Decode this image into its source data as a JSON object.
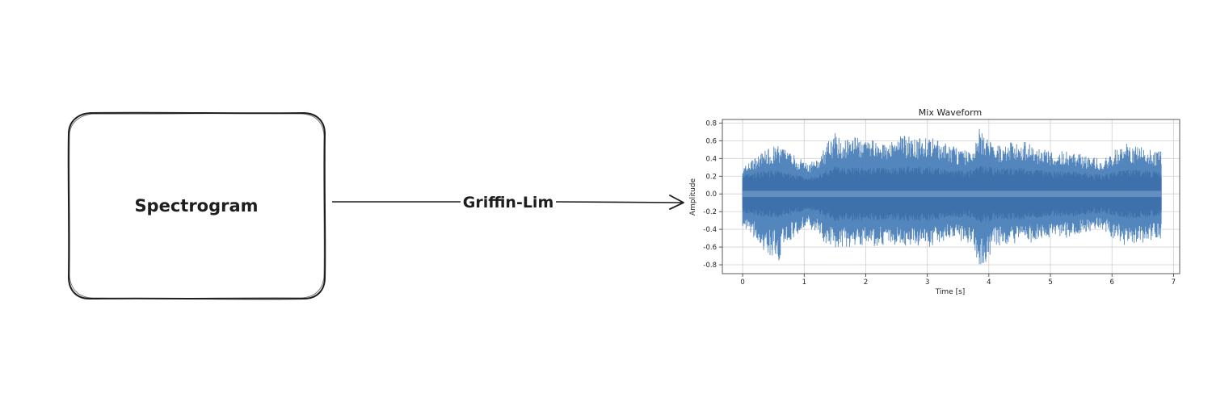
{
  "diagram": {
    "box_label": "Spectrogram",
    "arrow_label": "Griffin-Lim"
  },
  "chart_data": {
    "type": "line",
    "title": "Mix Waveform",
    "xlabel": "Time [s]",
    "ylabel": "Amplitude",
    "xlim": [
      -0.33,
      7.1
    ],
    "ylim": [
      -0.9,
      0.84
    ],
    "xticks": [
      0,
      1,
      2,
      3,
      4,
      5,
      6,
      7
    ],
    "yticks": [
      0.8,
      0.6,
      0.4,
      0.2,
      0.0,
      -0.2,
      -0.4,
      -0.6,
      -0.8
    ],
    "grid": true,
    "color": "#4a7fb8",
    "duration_s": 6.8,
    "envelope": {
      "t": [
        0.0,
        0.2,
        0.4,
        0.6,
        0.75,
        0.9,
        1.05,
        1.2,
        1.35,
        1.5,
        1.65,
        1.8,
        2.0,
        2.2,
        2.4,
        2.6,
        2.8,
        3.0,
        3.2,
        3.4,
        3.6,
        3.75,
        3.85,
        3.95,
        4.1,
        4.3,
        4.5,
        4.7,
        4.9,
        5.1,
        5.3,
        5.5,
        5.7,
        5.85,
        6.0,
        6.2,
        6.4,
        6.6,
        6.8
      ],
      "max": [
        0.3,
        0.42,
        0.52,
        0.55,
        0.48,
        0.42,
        0.35,
        0.38,
        0.55,
        0.7,
        0.62,
        0.66,
        0.6,
        0.62,
        0.58,
        0.68,
        0.62,
        0.66,
        0.6,
        0.55,
        0.5,
        0.52,
        0.75,
        0.68,
        0.55,
        0.58,
        0.62,
        0.55,
        0.5,
        0.48,
        0.5,
        0.45,
        0.42,
        0.38,
        0.48,
        0.58,
        0.55,
        0.52,
        0.48
      ],
      "min": [
        -0.38,
        -0.5,
        -0.7,
        -0.78,
        -0.55,
        -0.45,
        -0.4,
        -0.42,
        -0.58,
        -0.62,
        -0.6,
        -0.62,
        -0.58,
        -0.6,
        -0.55,
        -0.62,
        -0.58,
        -0.62,
        -0.56,
        -0.5,
        -0.55,
        -0.6,
        -0.85,
        -0.8,
        -0.6,
        -0.58,
        -0.55,
        -0.55,
        -0.5,
        -0.48,
        -0.5,
        -0.45,
        -0.42,
        -0.4,
        -0.5,
        -0.6,
        -0.58,
        -0.55,
        -0.5
      ],
      "core": [
        0.18,
        0.2,
        0.22,
        0.22,
        0.2,
        0.18,
        0.16,
        0.17,
        0.22,
        0.26,
        0.25,
        0.26,
        0.25,
        0.25,
        0.24,
        0.26,
        0.25,
        0.26,
        0.24,
        0.22,
        0.22,
        0.23,
        0.28,
        0.27,
        0.24,
        0.24,
        0.25,
        0.23,
        0.22,
        0.21,
        0.22,
        0.2,
        0.19,
        0.18,
        0.2,
        0.23,
        0.23,
        0.22,
        0.2
      ]
    }
  }
}
